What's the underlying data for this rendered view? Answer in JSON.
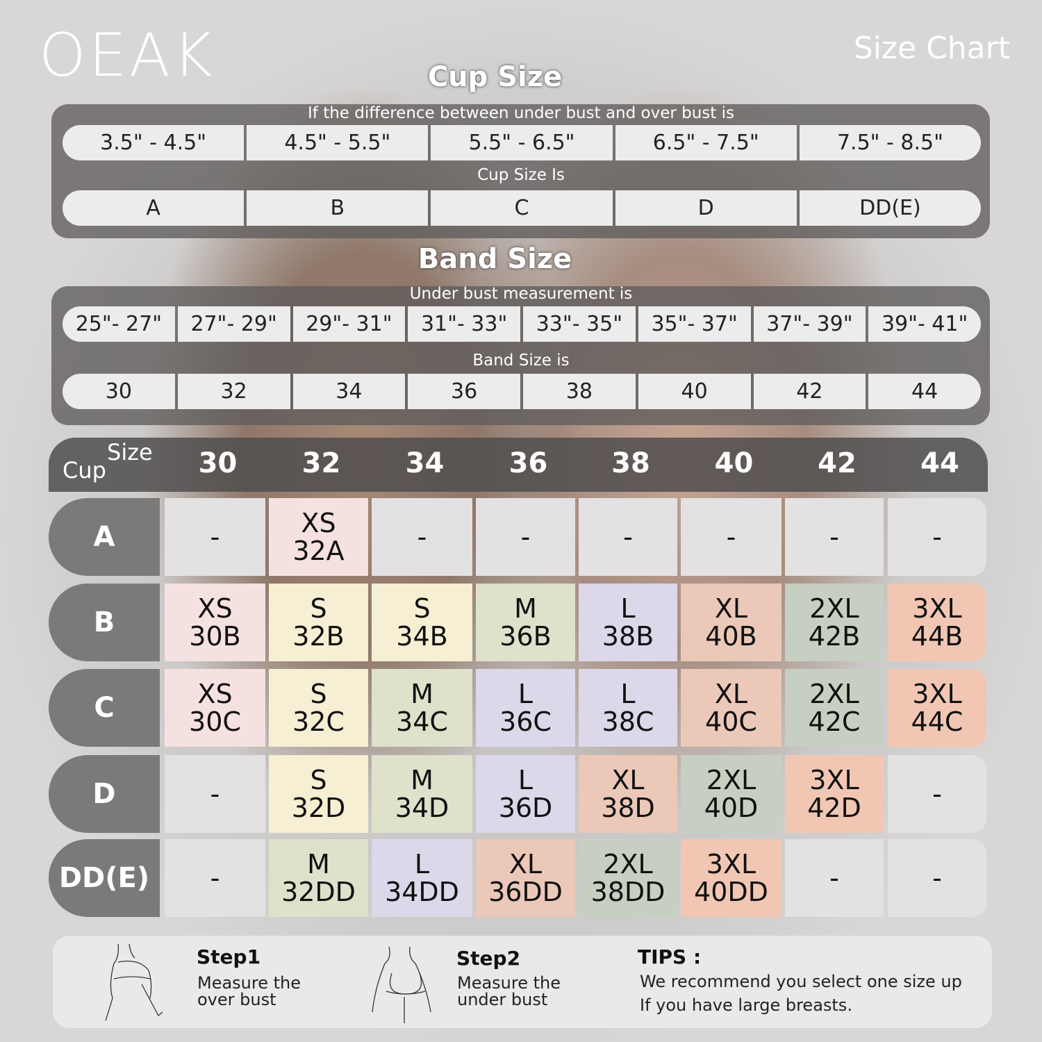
{
  "brand": "OEAK",
  "title": "Size Chart",
  "cup_section": {
    "title": "Cup Size",
    "caption1": "If the  difference between under bust and over bust is",
    "differences": [
      "3.5\" -  4.5\"",
      "4.5\" -  5.5\"",
      "5.5\" -  6.5\"",
      "6.5\" -  7.5\"",
      "7.5\" -  8.5\""
    ],
    "caption2": "Cup Size Is",
    "cups": [
      "A",
      "B",
      "C",
      "D",
      "DD(E)"
    ]
  },
  "band_section": {
    "title": "Band Size",
    "caption1": "Under bust measurement is",
    "measurements": [
      "25\"- 27\"",
      "27\"- 29\"",
      "29\"- 31\"",
      "31\"- 33\"",
      "33\"- 35\"",
      "35\"- 37\"",
      "37\"- 39\"",
      "39\"- 41\""
    ],
    "caption2": "Band Size is",
    "bands": [
      "30",
      "32",
      "34",
      "36",
      "38",
      "40",
      "42",
      "44"
    ]
  },
  "grid": {
    "corner_size": "Size",
    "corner_cup": "Cup",
    "columns": [
      "30",
      "32",
      "34",
      "36",
      "38",
      "40",
      "42",
      "44"
    ],
    "colors": {
      "none": "#e3e1e2",
      "XS": "#f5e1df",
      "S": "#f6efd3",
      "M": "#dfe1cb",
      "L": "#dcd8ea",
      "XL": "#ebc8b8",
      "2XL": "#c6cfc1",
      "3XL": "#f1c7b4"
    },
    "rows": [
      {
        "cup": "A",
        "cells": [
          [
            "-",
            ""
          ],
          [
            "XS",
            "32A"
          ],
          [
            "-",
            ""
          ],
          [
            "-",
            ""
          ],
          [
            "-",
            ""
          ],
          [
            "-",
            ""
          ],
          [
            "-",
            ""
          ],
          [
            "-",
            ""
          ]
        ]
      },
      {
        "cup": "B",
        "cells": [
          [
            "XS",
            "30B"
          ],
          [
            "S",
            "32B"
          ],
          [
            "S",
            "34B"
          ],
          [
            "M",
            "36B"
          ],
          [
            "L",
            "38B"
          ],
          [
            "XL",
            "40B"
          ],
          [
            "2XL",
            "42B"
          ],
          [
            "3XL",
            "44B"
          ]
        ]
      },
      {
        "cup": "C",
        "cells": [
          [
            "XS",
            "30C"
          ],
          [
            "S",
            "32C"
          ],
          [
            "M",
            "34C"
          ],
          [
            "L",
            "36C"
          ],
          [
            "L",
            "38C"
          ],
          [
            "XL",
            "40C"
          ],
          [
            "2XL",
            "42C"
          ],
          [
            "3XL",
            "44C"
          ]
        ]
      },
      {
        "cup": "D",
        "cells": [
          [
            "-",
            ""
          ],
          [
            "S",
            "32D"
          ],
          [
            "M",
            "34D"
          ],
          [
            "L",
            "36D"
          ],
          [
            "XL",
            "38D"
          ],
          [
            "2XL",
            "40D"
          ],
          [
            "3XL",
            "42D"
          ],
          [
            "-",
            ""
          ]
        ]
      },
      {
        "cup": "DD(E)",
        "cells": [
          [
            "-",
            ""
          ],
          [
            "M",
            "32DD"
          ],
          [
            "L",
            "34DD"
          ],
          [
            "XL",
            "36DD"
          ],
          [
            "2XL",
            "38DD"
          ],
          [
            "3XL",
            "40DD"
          ],
          [
            "-",
            ""
          ],
          [
            "-",
            ""
          ]
        ]
      }
    ]
  },
  "footer": {
    "step1": {
      "title": "Step1",
      "line1": "Measure the",
      "line2": "over bust"
    },
    "step2": {
      "title": "Step2",
      "line1": "Measure the",
      "line2": "under bust"
    },
    "tips": {
      "title": "TIPS :",
      "line1": "We recommend you select one size up",
      "line2": "If you have large breasts."
    }
  }
}
